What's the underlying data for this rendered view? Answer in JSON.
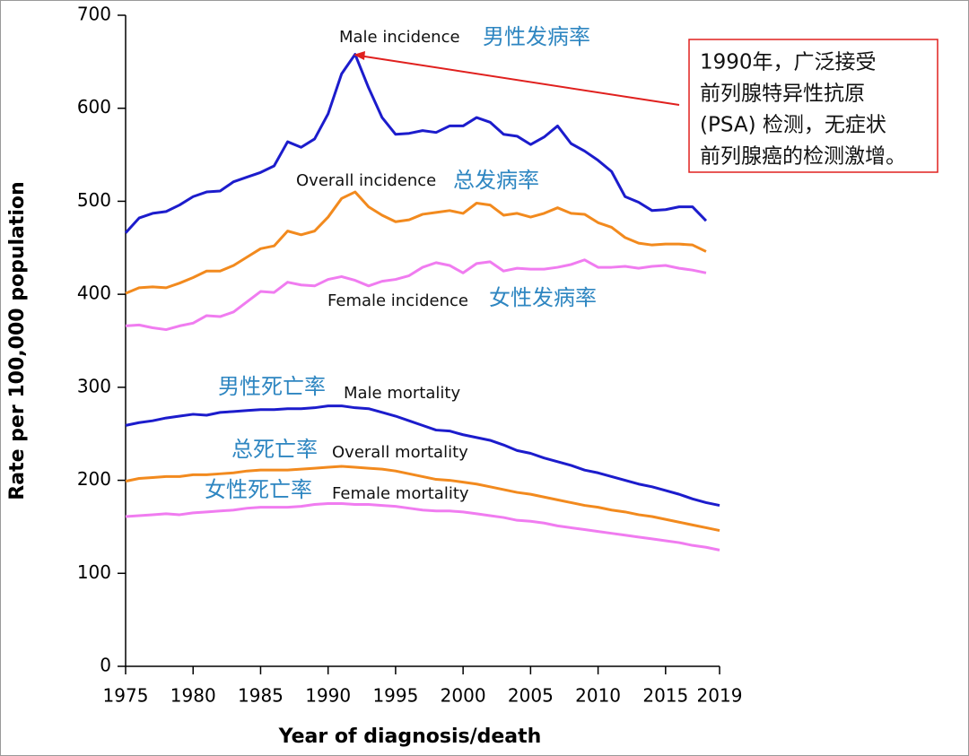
{
  "chart_data": {
    "type": "line",
    "x_label": "Year of diagnosis/death",
    "y_label": "Rate per 100,000 population",
    "x": [
      1975,
      1976,
      1977,
      1978,
      1979,
      1980,
      1981,
      1982,
      1983,
      1984,
      1985,
      1986,
      1987,
      1988,
      1989,
      1990,
      1991,
      1992,
      1993,
      1994,
      1995,
      1996,
      1997,
      1998,
      1999,
      2000,
      2001,
      2002,
      2003,
      2004,
      2005,
      2006,
      2007,
      2008,
      2009,
      2010,
      2011,
      2012,
      2013,
      2014,
      2015,
      2016,
      2017,
      2018,
      2019
    ],
    "xlim": [
      1975,
      2019
    ],
    "xticks": [
      1975,
      1980,
      1985,
      1990,
      1995,
      2000,
      2005,
      2010,
      2015,
      2019
    ],
    "ylim": [
      0,
      700
    ],
    "yticks": [
      0,
      100,
      200,
      300,
      400,
      500,
      600,
      700
    ],
    "series": [
      {
        "name": "Male incidence",
        "color": "#1c1ccc",
        "values": [
          466,
          482,
          487,
          489,
          496,
          505,
          510,
          511,
          521,
          526,
          531,
          538,
          564,
          558,
          567,
          594,
          637,
          658,
          622,
          590,
          572,
          573,
          576,
          574,
          581,
          581,
          590,
          585,
          572,
          570,
          561,
          569,
          581,
          562,
          554,
          544,
          532,
          505,
          499,
          490,
          491,
          494,
          494,
          479,
          null
        ]
      },
      {
        "name": "Overall incidence",
        "color": "#f28a1e",
        "values": [
          401,
          407,
          408,
          407,
          412,
          418,
          425,
          425,
          431,
          440,
          449,
          452,
          468,
          464,
          468,
          483,
          503,
          510,
          494,
          485,
          478,
          480,
          486,
          488,
          490,
          487,
          498,
          496,
          485,
          487,
          483,
          487,
          493,
          487,
          486,
          477,
          472,
          461,
          455,
          453,
          454,
          454,
          453,
          446,
          null
        ]
      },
      {
        "name": "Female incidence",
        "color": "#f07cf0",
        "values": [
          366,
          367,
          364,
          362,
          366,
          369,
          377,
          376,
          381,
          392,
          403,
          402,
          413,
          410,
          409,
          416,
          419,
          415,
          409,
          414,
          416,
          420,
          429,
          434,
          431,
          423,
          433,
          435,
          425,
          428,
          427,
          427,
          429,
          432,
          437,
          429,
          429,
          430,
          428,
          430,
          431,
          428,
          426,
          423,
          null
        ]
      },
      {
        "name": "Male mortality",
        "color": "#1c1ccc",
        "values": [
          259,
          262,
          264,
          267,
          269,
          271,
          270,
          273,
          274,
          275,
          276,
          276,
          277,
          277,
          278,
          280,
          280,
          278,
          277,
          273,
          269,
          264,
          259,
          254,
          253,
          249,
          246,
          243,
          238,
          232,
          229,
          224,
          220,
          216,
          211,
          208,
          204,
          200,
          196,
          193,
          189,
          185,
          180,
          176,
          173
        ]
      },
      {
        "name": "Overall mortality",
        "color": "#f28a1e",
        "values": [
          199,
          202,
          203,
          204,
          204,
          206,
          206,
          207,
          208,
          210,
          211,
          211,
          211,
          212,
          213,
          214,
          215,
          214,
          213,
          212,
          210,
          207,
          204,
          201,
          200,
          198,
          196,
          193,
          190,
          187,
          185,
          182,
          179,
          176,
          173,
          171,
          168,
          166,
          163,
          161,
          158,
          155,
          152,
          149,
          146
        ]
      },
      {
        "name": "Female mortality",
        "color": "#f07cf0",
        "values": [
          161,
          162,
          163,
          164,
          163,
          165,
          166,
          167,
          168,
          170,
          171,
          171,
          171,
          172,
          174,
          175,
          175,
          174,
          174,
          173,
          172,
          170,
          168,
          167,
          167,
          166,
          164,
          162,
          160,
          157,
          156,
          154,
          151,
          149,
          147,
          145,
          143,
          141,
          139,
          137,
          135,
          133,
          130,
          128,
          125
        ]
      }
    ],
    "annotations": [
      {
        "text": "Male incidence",
        "color": "#111111"
      },
      {
        "text": "男性发病率",
        "color": "#2e86c1"
      },
      {
        "text": "Overall incidence",
        "color": "#111111"
      },
      {
        "text": "总发病率",
        "color": "#2e86c1"
      },
      {
        "text": "Female incidence",
        "color": "#111111"
      },
      {
        "text": "女性发病率",
        "color": "#2e86c1"
      },
      {
        "text": "男性死亡率",
        "color": "#2e86c1"
      },
      {
        "text": "Male mortality",
        "color": "#111111"
      },
      {
        "text": "总死亡率",
        "color": "#2e86c1"
      },
      {
        "text": "Overall  mortality",
        "color": "#111111"
      },
      {
        "text": "女性死亡率",
        "color": "#2e86c1"
      },
      {
        "text": "Female mortality",
        "color": "#111111"
      }
    ],
    "callout": {
      "color": "#e0201e",
      "lines": [
        "1990年，广泛接受",
        "前列腺特异性抗原",
        "(PSA) 检测，无症状",
        "前列腺癌的检测激增。"
      ]
    }
  }
}
